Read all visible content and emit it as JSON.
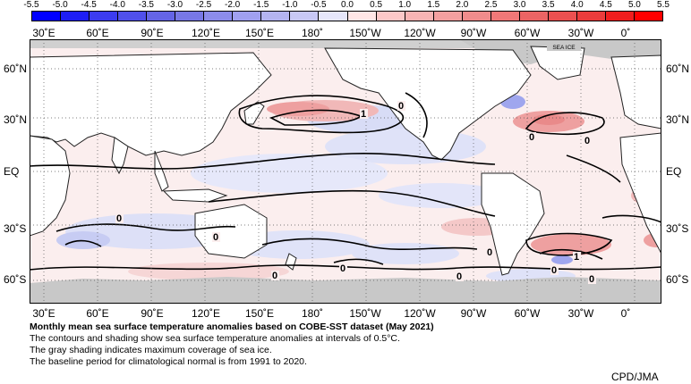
{
  "colorbar": {
    "labels": [
      "-5.5",
      "-5.0",
      "-4.5",
      "-4.0",
      "-3.5",
      "-3.0",
      "-2.5",
      "-2.0",
      "-1.5",
      "-1.0",
      "-0.5",
      "0.0",
      "0.5",
      "1.0",
      "1.5",
      "2.0",
      "2.5",
      "3.0",
      "3.5",
      "4.0",
      "4.5",
      "5.0",
      "5.5"
    ],
    "colors": [
      "#0000ff",
      "#1e1ef5",
      "#3c3cf0",
      "#5050eb",
      "#6464e6",
      "#7878e6",
      "#8c8ceb",
      "#a0a0f0",
      "#b4b4f0",
      "#c8c8f5",
      "#e6e6fa",
      "#ffe6e6",
      "#fcc8c8",
      "#f8b4b4",
      "#f4a0a0",
      "#f08c8c",
      "#f07878",
      "#eb6464",
      "#eb5050",
      "#eb3c3c",
      "#f01e1e",
      "#ff0000"
    ]
  },
  "map": {
    "longitude_labels": [
      "30˚E",
      "60˚E",
      "90˚E",
      "120˚E",
      "150˚E",
      "180˚",
      "150˚W",
      "120˚W",
      "90˚W",
      "60˚W",
      "30˚W",
      "0˚"
    ],
    "latitude_labels": [
      "60˚N",
      "30˚N",
      "EQ",
      "30˚S",
      "60˚S"
    ],
    "sea_ice_label": "SEA ICE",
    "contour_labels": [
      "1",
      "0",
      "0",
      "0",
      "0",
      "0",
      "0",
      "0",
      "0",
      "0",
      "0",
      "1",
      "0"
    ],
    "colors": {
      "land": "#ffffff",
      "sea_ice": "#c8c8c8",
      "ocean_base": "#fbeeee",
      "coast": "#222222",
      "contour": "#000000"
    }
  },
  "caption": {
    "title": "Monthly mean sea surface temperature anomalies based on COBE-SST dataset (May 2021)",
    "lines": [
      "The contours and shading show sea surface temperature anomalies at intervals of 0.5°C.",
      "The gray shading indicates maximum coverage of sea ice.",
      "The baseline period for climatological normal is from 1991 to 2020."
    ]
  },
  "credit": "CPD/JMA"
}
